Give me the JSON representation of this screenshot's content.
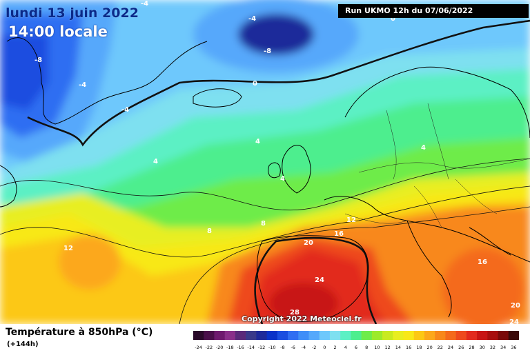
{
  "header": {
    "date": "lundi 13 juin 2022",
    "time": "14:00 locale",
    "run": "Run UKMO 12h du 07/06/2022"
  },
  "copyright": "Copyright 2022 Meteociel.fr",
  "legend": {
    "title": "Température à 850hPa (°C)",
    "subtitle": "(+144h)",
    "values": [
      "-24",
      "-22",
      "-20",
      "-18",
      "-16",
      "-14",
      "-12",
      "-10",
      "-8",
      "-6",
      "-4",
      "-2",
      "0",
      "2",
      "4",
      "6",
      "8",
      "10",
      "12",
      "14",
      "16",
      "18",
      "20",
      "22",
      "24",
      "26",
      "28",
      "30",
      "32",
      "34",
      "36"
    ],
    "colors": [
      "#2a0a2a",
      "#4a0f4a",
      "#6e1a6e",
      "#8a2f8a",
      "#5a2a7a",
      "#3a3a8a",
      "#1e2a9a",
      "#0a32c8",
      "#1a4ee0",
      "#2f6ef2",
      "#3f8ef8",
      "#56a8fb",
      "#6ec8fc",
      "#7ee0f0",
      "#5cf0c4",
      "#4eee8e",
      "#6eec4a",
      "#9cea2a",
      "#c8ea20",
      "#e8ee20",
      "#f8e818",
      "#fcc814",
      "#fca81a",
      "#f8881a",
      "#f46a1c",
      "#ee4a1e",
      "#e22a1e",
      "#c81414",
      "#a80e0e",
      "#7a0a0a",
      "#3a0a0a"
    ]
  },
  "map_labels": [
    {
      "text": "-4"
    },
    {
      "text": "-4"
    },
    {
      "text": "-8"
    },
    {
      "text": "-8"
    },
    {
      "text": "-4"
    },
    {
      "text": "-4"
    },
    {
      "text": "0"
    },
    {
      "text": "0"
    },
    {
      "text": "4"
    },
    {
      "text": "4"
    },
    {
      "text": "4"
    },
    {
      "text": "4"
    },
    {
      "text": "8"
    },
    {
      "text": "8"
    },
    {
      "text": "12"
    },
    {
      "text": "12"
    },
    {
      "text": "16"
    },
    {
      "text": "16"
    },
    {
      "text": "20"
    },
    {
      "text": "24"
    },
    {
      "text": "28"
    },
    {
      "text": "20"
    },
    {
      "text": "24"
    }
  ]
}
